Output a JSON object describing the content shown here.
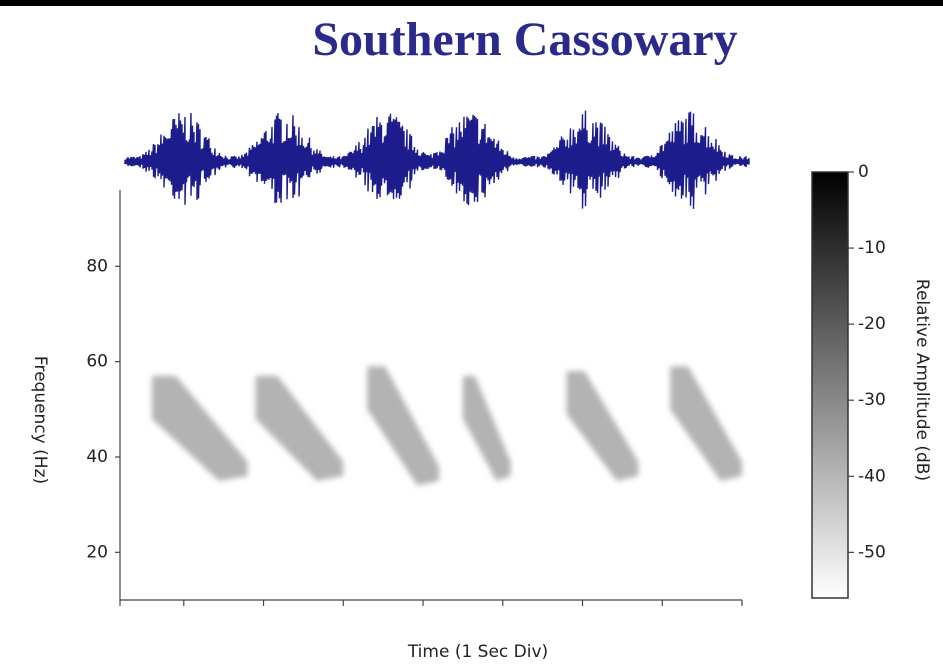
{
  "chart_data": {
    "type": "spectrogram",
    "title": "Southern Cassowary",
    "x_label": "Time (1 Sec Div)",
    "y_label": "Frequency (Hz)",
    "xlim": [
      0,
      7.8
    ],
    "xticks": [
      0,
      0.8,
      1.8,
      2.8,
      3.8,
      4.8,
      5.8,
      6.8,
      7.8
    ],
    "ylim": [
      10,
      96
    ],
    "yticks": [
      20,
      40,
      60,
      80
    ],
    "calls": [
      {
        "start": 0.4,
        "end": 1.6,
        "start_freq": 57,
        "end_freq": 36
      },
      {
        "start": 1.7,
        "end": 2.8,
        "start_freq": 57,
        "end_freq": 36
      },
      {
        "start": 3.1,
        "end": 4.0,
        "start_freq": 59,
        "end_freq": 35
      },
      {
        "start": 4.3,
        "end": 4.9,
        "start_freq": 57,
        "end_freq": 36
      },
      {
        "start": 5.6,
        "end": 6.5,
        "start_freq": 58,
        "end_freq": 36
      },
      {
        "start": 6.9,
        "end": 7.8,
        "start_freq": 59,
        "end_freq": 36
      }
    ],
    "waveform_color": "#1c1c8c",
    "colorbar": {
      "label": "Relative Amplitude (dB)",
      "lim": [
        0,
        -56
      ],
      "ticks": [
        0,
        -10,
        -20,
        -30,
        -40,
        -50
      ],
      "colors": [
        "#000000",
        "#ffffff"
      ]
    }
  }
}
